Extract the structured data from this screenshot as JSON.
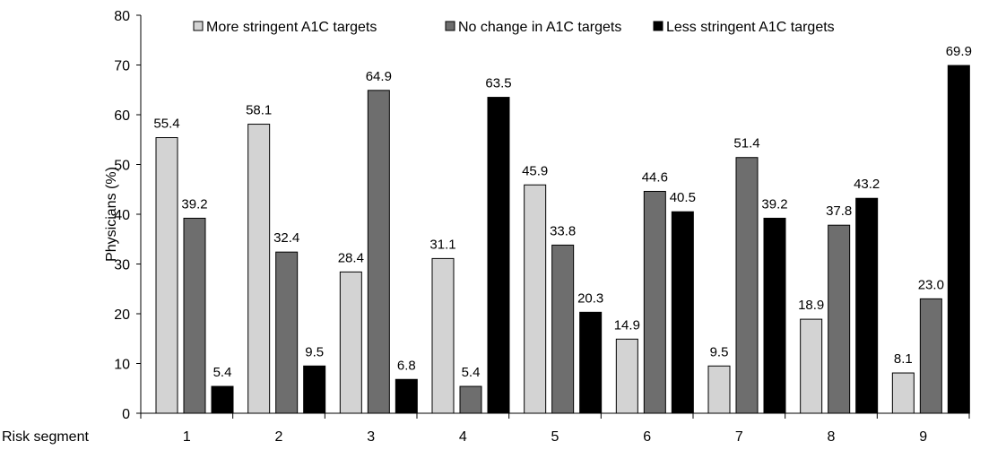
{
  "chart_data": {
    "type": "bar",
    "categories": [
      "1",
      "2",
      "3",
      "4",
      "5",
      "6",
      "7",
      "8",
      "9"
    ],
    "series": [
      {
        "name": "More stringent A1C targets",
        "color": "#d3d3d3",
        "values": [
          55.4,
          58.1,
          28.4,
          31.1,
          45.9,
          14.9,
          9.5,
          18.9,
          8.1
        ],
        "labels": [
          "55.4",
          "58.1",
          "28.4",
          "31.1",
          "45.9",
          "14.9",
          "9.5",
          "18.9",
          "8.1"
        ]
      },
      {
        "name": "No change in A1C targets",
        "color": "#6e6e6e",
        "values": [
          39.2,
          32.4,
          64.9,
          5.4,
          33.8,
          44.6,
          51.4,
          37.8,
          23.0
        ],
        "labels": [
          "39.2",
          "32.4",
          "64.9",
          "5.4",
          "33.8",
          "44.6",
          "51.4",
          "37.8",
          "23.0"
        ]
      },
      {
        "name": "Less stringent A1C targets",
        "color": "#000000",
        "values": [
          5.4,
          9.5,
          6.8,
          63.5,
          20.3,
          40.5,
          39.2,
          43.2,
          69.9
        ],
        "labels": [
          "5.4",
          "9.5",
          "6.8",
          "63.5",
          "20.3",
          "40.5",
          "39.2",
          "43.2",
          "69.9"
        ]
      }
    ],
    "xlabel": "Risk segment",
    "ylabel": "Physicians (%)",
    "ylim": [
      0,
      80
    ],
    "yticks": [
      "0",
      "10",
      "20",
      "30",
      "40",
      "50",
      "60",
      "70",
      "80"
    ],
    "grid": false,
    "legend_position": "top"
  }
}
